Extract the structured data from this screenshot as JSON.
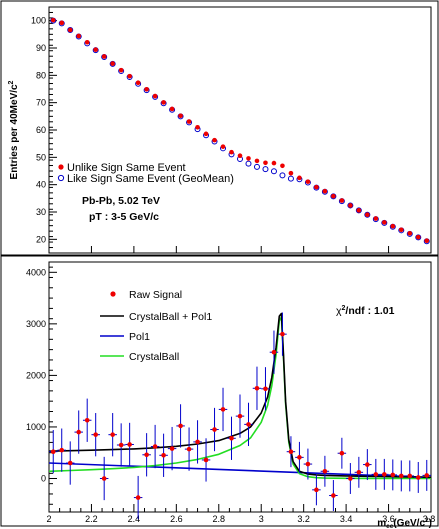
{
  "chart_data": [
    {
      "type": "scatter",
      "ylabel": "Entries per 40MeV/c",
      "ylabel_sup": "2",
      "xlim": [
        2.0,
        3.8
      ],
      "ylim": [
        15,
        105
      ],
      "yticks": [
        20,
        30,
        40,
        50,
        60,
        70,
        80,
        90,
        100
      ],
      "legend_position": "bottom-left",
      "annotations": [
        "Pb-Pb, 5.02 TeV",
        "pT : 3-5 GeV/c"
      ],
      "series": [
        {
          "name": "Unlike Sign Same Event",
          "marker": "filled-circle",
          "color": "#ee0000",
          "x": [
            2.02,
            2.06,
            2.1,
            2.14,
            2.18,
            2.22,
            2.26,
            2.3,
            2.34,
            2.38,
            2.42,
            2.46,
            2.5,
            2.54,
            2.58,
            2.62,
            2.66,
            2.7,
            2.74,
            2.78,
            2.82,
            2.86,
            2.9,
            2.94,
            2.98,
            3.02,
            3.06,
            3.1,
            3.14,
            3.18,
            3.22,
            3.26,
            3.3,
            3.34,
            3.38,
            3.42,
            3.46,
            3.5,
            3.54,
            3.58,
            3.62,
            3.66,
            3.7,
            3.74,
            3.78
          ],
          "y": [
            100.2,
            99.2,
            96.6,
            94.4,
            92.1,
            89.4,
            86.9,
            84.3,
            81.9,
            79.7,
            77.3,
            74.9,
            72.4,
            70.1,
            67.7,
            65.2,
            63.1,
            61.0,
            58.6,
            56.3,
            53.9,
            51.9,
            50.6,
            49.6,
            48.7,
            48.0,
            47.9,
            46.9,
            44.2,
            42.5,
            41.1,
            39.1,
            37.6,
            35.8,
            34.2,
            32.4,
            30.6,
            29.0,
            27.6,
            26.2,
            24.8,
            23.5,
            22.2,
            20.8,
            19.5
          ]
        },
        {
          "name": "Like Sign Same Event (GeoMean)",
          "marker": "open-circle",
          "color": "#0000cc",
          "x": [
            2.02,
            2.06,
            2.1,
            2.14,
            2.18,
            2.22,
            2.26,
            2.3,
            2.34,
            2.38,
            2.42,
            2.46,
            2.5,
            2.54,
            2.58,
            2.62,
            2.66,
            2.7,
            2.74,
            2.78,
            2.82,
            2.86,
            2.9,
            2.94,
            2.98,
            3.02,
            3.06,
            3.1,
            3.14,
            3.18,
            3.22,
            3.26,
            3.3,
            3.34,
            3.38,
            3.42,
            3.46,
            3.5,
            3.54,
            3.58,
            3.62,
            3.66,
            3.7,
            3.74,
            3.78
          ],
          "y": [
            100.0,
            99.0,
            96.6,
            94.2,
            91.7,
            89.2,
            86.7,
            84.2,
            81.6,
            79.4,
            76.9,
            74.6,
            72.1,
            69.8,
            67.4,
            65.0,
            62.8,
            60.3,
            58.1,
            55.8,
            53.3,
            51.1,
            49.4,
            47.7,
            46.5,
            45.7,
            44.9,
            43.4,
            42.2,
            42.0,
            40.8,
            38.9,
            37.4,
            35.7,
            34.0,
            32.4,
            30.6,
            29.0,
            27.4,
            26.0,
            24.6,
            23.3,
            22.0,
            20.7,
            19.3
          ]
        }
      ]
    },
    {
      "type": "scatter",
      "xlabel": "m",
      "xlabel_sub": "ee",
      "xlabel_unit": "(GeV/c",
      "xlabel_sup": "2",
      "xlabel_close": ")",
      "xlim": [
        2.0,
        3.8
      ],
      "ylim": [
        -650,
        4200
      ],
      "xticks": [
        "2",
        "2.2",
        "2.4",
        "2.6",
        "2.8",
        "3",
        "3.2",
        "3.4",
        "3.6",
        "3.8"
      ],
      "yticks": [
        0,
        1000,
        2000,
        3000,
        4000
      ],
      "legend_position": "top-left",
      "chi2_label": "χ",
      "chi2_sup": "2",
      "chi2_rest": "/ndf : 1.01",
      "series": [
        {
          "name": "Raw Signal",
          "marker": "filled-circle",
          "color": "#ee0000",
          "error_color": "#0000cc",
          "x": [
            2.02,
            2.06,
            2.1,
            2.14,
            2.18,
            2.22,
            2.26,
            2.3,
            2.34,
            2.38,
            2.42,
            2.46,
            2.5,
            2.54,
            2.58,
            2.62,
            2.66,
            2.7,
            2.74,
            2.78,
            2.82,
            2.86,
            2.9,
            2.94,
            2.98,
            3.02,
            3.06,
            3.1,
            3.14,
            3.18,
            3.22,
            3.26,
            3.3,
            3.34,
            3.38,
            3.42,
            3.46,
            3.5,
            3.54,
            3.58,
            3.62,
            3.66,
            3.7,
            3.74,
            3.78
          ],
          "y": [
            520,
            550,
            300,
            900,
            1130,
            850,
            0,
            850,
            650,
            660,
            -370,
            460,
            620,
            450,
            580,
            1020,
            570,
            710,
            360,
            950,
            1340,
            780,
            1210,
            1050,
            1750,
            1740,
            2450,
            2800,
            520,
            410,
            280,
            -220,
            140,
            -330,
            490,
            0,
            120,
            270,
            80,
            80,
            70,
            50,
            50,
            20,
            60
          ],
          "err": [
            420,
            420,
            420,
            420,
            420,
            420,
            420,
            420,
            420,
            420,
            420,
            420,
            420,
            420,
            420,
            420,
            420,
            420,
            420,
            420,
            420,
            420,
            420,
            420,
            420,
            420,
            420,
            420,
            300,
            300,
            300,
            300,
            300,
            300,
            300,
            300,
            300,
            300,
            300,
            300,
            300,
            300,
            300,
            300,
            300
          ]
        },
        {
          "name": "CrystalBall + Pol1",
          "type": "line",
          "color": "#000000",
          "x": [
            2.0,
            2.1,
            2.2,
            2.3,
            2.4,
            2.5,
            2.6,
            2.7,
            2.8,
            2.9,
            2.95,
            3.0,
            3.03,
            3.05,
            3.07,
            3.085,
            3.095,
            3.105,
            3.115,
            3.13,
            3.15,
            3.18,
            3.22,
            3.26,
            3.3,
            3.4,
            3.5,
            3.6,
            3.7,
            3.8
          ],
          "y": [
            530,
            540,
            548,
            560,
            575,
            595,
            625,
            670,
            735,
            875,
            1000,
            1270,
            1580,
            1960,
            2550,
            3150,
            3200,
            2400,
            1500,
            750,
            330,
            140,
            85,
            70,
            60,
            50,
            42,
            36,
            30,
            25
          ]
        },
        {
          "name": "Pol1",
          "type": "line",
          "color": "#0000cc",
          "x": [
            2.0,
            3.8
          ],
          "y": [
            300,
            20
          ]
        },
        {
          "name": "CrystalBall",
          "type": "line",
          "color": "#22dd22",
          "x": [
            2.0,
            2.1,
            2.2,
            2.3,
            2.4,
            2.5,
            2.6,
            2.7,
            2.8,
            2.9,
            2.95,
            3.0,
            3.03,
            3.05,
            3.07,
            3.085,
            3.095,
            3.105,
            3.115,
            3.13,
            3.15,
            3.18,
            3.22,
            3.26,
            3.3,
            3.4,
            3.5,
            3.6,
            3.7,
            3.8
          ],
          "y": [
            140,
            155,
            170,
            190,
            215,
            250,
            300,
            370,
            470,
            640,
            790,
            1090,
            1420,
            1800,
            2410,
            3060,
            3130,
            2340,
            1450,
            700,
            280,
            95,
            35,
            15,
            8,
            4,
            2,
            1,
            1,
            0
          ]
        }
      ]
    }
  ]
}
